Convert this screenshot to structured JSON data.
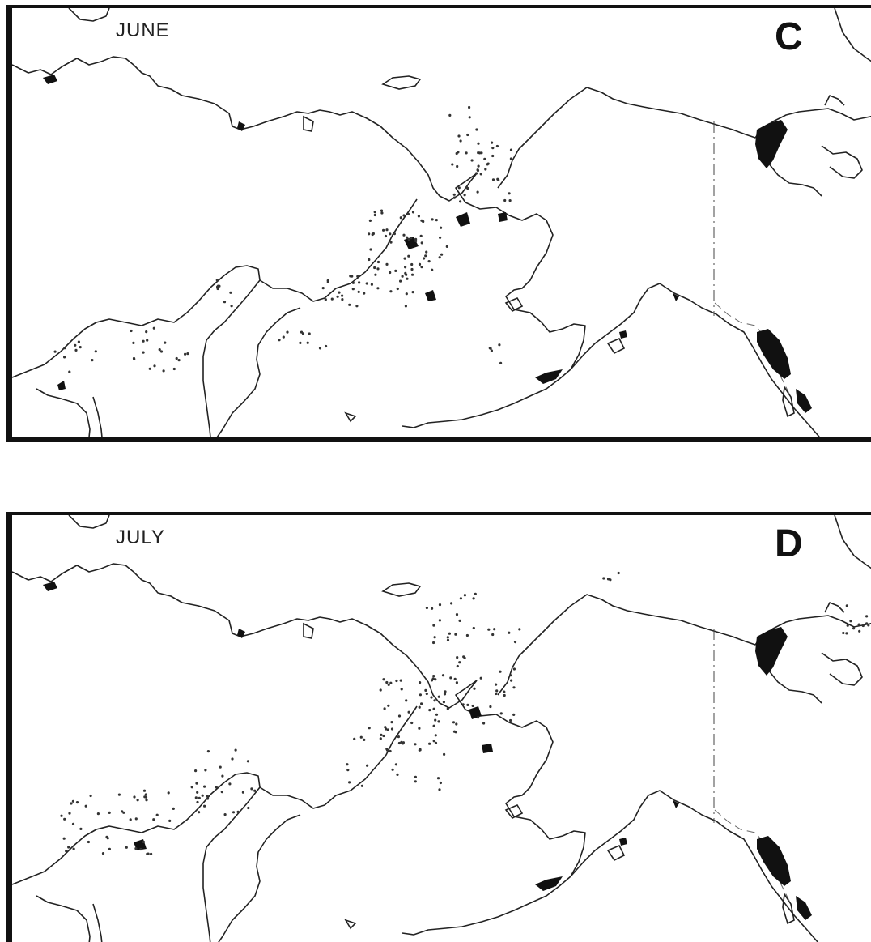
{
  "panels": [
    {
      "id": "june",
      "month_label": "JUNE",
      "panel_letter": "C"
    },
    {
      "id": "july",
      "month_label": "JULY",
      "panel_letter": "D"
    }
  ],
  "colors": {
    "ink": "#111111",
    "land": "#ffffff",
    "dots": "#333333"
  }
}
